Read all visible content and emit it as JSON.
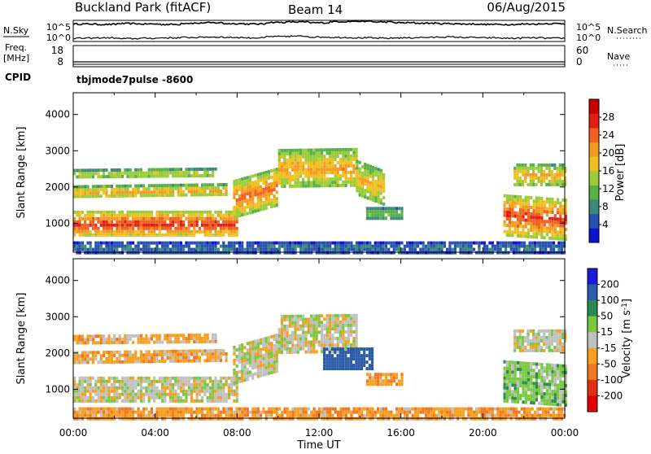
{
  "header": {
    "title": "Buckland Park (fitACF)",
    "beam": "Beam 14",
    "date": "06/Aug/2015"
  },
  "colors": {
    "background": "#ffffff",
    "axis": "#000000"
  },
  "chart_data": [
    {
      "type": "line",
      "name_panel": "noise",
      "left_label": "N.Sky",
      "right_label": "N.Search",
      "left_ticks": [
        "10^5",
        "10^0"
      ],
      "right_ticks": [
        "10^5",
        "10^0"
      ],
      "series": [
        {
          "values": [
            4.3,
            4.2,
            4.4,
            4.3,
            4.2,
            4.5,
            4.6,
            4.4,
            4.3,
            4.7,
            4.8,
            4.6,
            4.9,
            5.0,
            4.8,
            4.6,
            4.5,
            4.4,
            4.3,
            4.2,
            4.2,
            4.3,
            4.4,
            4.3
          ]
        },
        {
          "values": [
            0.8,
            0.9,
            0.7,
            0.8,
            0.9,
            1.0,
            1.1,
            1.0,
            0.9,
            1.2,
            1.3,
            1.1,
            1.0,
            0.9,
            0.8,
            0.9,
            1.0,
            1.1,
            1.0,
            0.9,
            0.8,
            0.9,
            0.8,
            0.8
          ]
        }
      ]
    },
    {
      "type": "line",
      "name_panel": "frequency",
      "left_label_line1": "Freq.",
      "left_label_line2": "[MHz]",
      "left_label_line3": "CPID",
      "right_label": "Nave",
      "left_ticks": [
        "18",
        "8"
      ],
      "right_ticks": [
        "60",
        "0"
      ],
      "cpid_text": "tbjmode7pulse -8600",
      "frequency_mhz": 9.0
    },
    {
      "type": "heatmap",
      "name_panel": "power",
      "ylabel": "Slant Range [km]",
      "y_ticks": [
        1000,
        2000,
        3000,
        4000
      ],
      "ylim": [
        200,
        4600
      ],
      "xlim_hours": [
        0,
        24
      ],
      "colorbar_label": "Power [dB]",
      "colorbar_ticks": [
        4,
        8,
        12,
        16,
        20,
        24,
        28
      ],
      "colorbar_range": [
        0,
        32
      ],
      "colorbar_colors": [
        "#1010d0",
        "#2850b0",
        "#3a8a7a",
        "#58b048",
        "#9acc3a",
        "#f0c020",
        "#f59a20",
        "#f06020",
        "#e02010",
        "#c80000"
      ],
      "echo_bands": [
        {
          "t0": 0.0,
          "t1": 8.0,
          "r0": 650,
          "r1": 1350,
          "level": 27,
          "slope": 0
        },
        {
          "t0": 0.0,
          "t1": 7.5,
          "r0": 1700,
          "r1": 2050,
          "level": 20,
          "slope": 60
        },
        {
          "t0": 0.0,
          "t1": 7.0,
          "r0": 2250,
          "r1": 2500,
          "level": 17,
          "slope": 40
        },
        {
          "t0": 7.8,
          "t1": 10.0,
          "r0": 1200,
          "r1": 2200,
          "level": 24,
          "slope": 350
        },
        {
          "t0": 10.0,
          "t1": 13.8,
          "r0": 2000,
          "r1": 3050,
          "level": 21,
          "slope": 30
        },
        {
          "t0": 13.8,
          "t1": 15.2,
          "r0": 1800,
          "r1": 2750,
          "level": 20,
          "slope": -300
        },
        {
          "t0": 14.3,
          "t1": 16.0,
          "r0": 1150,
          "r1": 1450,
          "level": 13,
          "slope": 0
        },
        {
          "t0": 21.0,
          "t1": 24.0,
          "r0": 700,
          "r1": 1800,
          "level": 26,
          "slope": -120
        },
        {
          "t0": 21.5,
          "t1": 24.0,
          "r0": 2050,
          "r1": 2650,
          "level": 20,
          "slope": 0
        },
        {
          "t0": 0.0,
          "t1": 24.0,
          "r0": 200,
          "r1": 500,
          "level": 7,
          "slope": 0
        }
      ]
    },
    {
      "type": "heatmap",
      "name_panel": "velocity",
      "ylabel": "Slant Range [km]",
      "y_ticks": [
        1000,
        2000,
        3000,
        4000
      ],
      "ylim": [
        200,
        4600
      ],
      "xlim_hours": [
        0,
        24
      ],
      "xlabel": "Time UT",
      "x_ticks": [
        "00:00",
        "04:00",
        "08:00",
        "12:00",
        "16:00",
        "20:00",
        "00:00"
      ],
      "colorbar_label": "Velocity [m s^-1]",
      "colorbar_ticks": [
        200,
        100,
        50,
        15,
        -15,
        -50,
        -100,
        -200
      ],
      "colorbar_colors": [
        "#1a1ad8",
        "#2a5aa8",
        "#2a8a50",
        "#78c840",
        "#c0c0c0",
        "#f5a020",
        "#f07820",
        "#e03010",
        "#e00000"
      ],
      "echo_bands": [
        {
          "t0": 0.0,
          "t1": 8.0,
          "r0": 650,
          "r1": 1350,
          "vel": 0,
          "slope": 0
        },
        {
          "t0": 0.0,
          "t1": 7.5,
          "r0": 1700,
          "r1": 2050,
          "vel": -30,
          "slope": 60
        },
        {
          "t0": 0.0,
          "t1": 7.0,
          "r0": 2250,
          "r1": 2500,
          "vel": -30,
          "slope": 40
        },
        {
          "t0": 7.8,
          "t1": 10.0,
          "r0": 1200,
          "r1": 2200,
          "vel": 0,
          "slope": 350
        },
        {
          "t0": 10.0,
          "t1": 13.8,
          "r0": 2000,
          "r1": 3050,
          "vel": 0,
          "slope": 30
        },
        {
          "t0": 12.2,
          "t1": 14.6,
          "r0": 1550,
          "r1": 2150,
          "vel": 150,
          "slope": 0
        },
        {
          "t0": 14.3,
          "t1": 16.0,
          "r0": 1150,
          "r1": 1450,
          "vel": -40,
          "slope": 0
        },
        {
          "t0": 21.0,
          "t1": 24.0,
          "r0": 700,
          "r1": 1800,
          "vel": 30,
          "slope": -120
        },
        {
          "t0": 21.5,
          "t1": 24.0,
          "r0": 2050,
          "r1": 2650,
          "vel": 0,
          "slope": 0
        },
        {
          "t0": 0.0,
          "t1": 24.0,
          "r0": 200,
          "r1": 500,
          "vel": -40,
          "slope": 0
        }
      ]
    }
  ]
}
